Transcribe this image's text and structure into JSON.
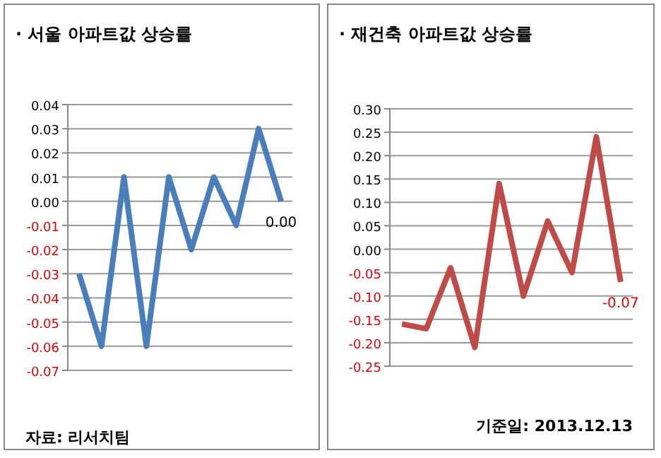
{
  "chart_data": [
    {
      "type": "line",
      "title": "· 서울 아파트값 상승률",
      "categories": [
        null,
        null,
        null,
        null,
        null,
        null,
        null,
        null,
        null,
        null
      ],
      "series": [
        {
          "color": "#4a7ebb",
          "values": [
            -0.03,
            -0.06,
            0.01,
            -0.06,
            0.01,
            -0.02,
            0.01,
            -0.01,
            0.03,
            0.0
          ],
          "value_labels": [
            null,
            null,
            null,
            null,
            null,
            null,
            null,
            null,
            null,
            "0.00"
          ]
        }
      ],
      "ylim": [
        -0.07,
        0.04
      ],
      "yticks": [
        {
          "value": -0.07,
          "label": "-0.07"
        },
        {
          "value": -0.06,
          "label": "-0.06"
        },
        {
          "value": -0.05,
          "label": "-0.05"
        },
        {
          "value": -0.04,
          "label": "-0.04"
        },
        {
          "value": -0.03,
          "label": "-0.03"
        },
        {
          "value": -0.02,
          "label": "-0.02"
        },
        {
          "value": -0.01,
          "label": "-0.01"
        },
        {
          "value": 0,
          "label": "0.00"
        },
        {
          "value": 0.01,
          "label": "0.01"
        },
        {
          "value": 0.02,
          "label": "0.02"
        },
        {
          "value": 0.03,
          "label": "0.03"
        },
        {
          "value": 0.04,
          "label": "0.04"
        }
      ],
      "grid": "y",
      "marker": "none",
      "line_style": "solid",
      "annotations": [
        "자료: 리서치팀"
      ]
    },
    {
      "type": "line",
      "title": "· 재건축 아파트값 상승률",
      "categories": [
        null,
        null,
        null,
        null,
        null,
        null,
        null,
        null,
        null,
        null
      ],
      "series": [
        {
          "color": "#be4b48",
          "values": [
            -0.16,
            -0.17,
            -0.04,
            -0.21,
            0.14,
            -0.1,
            0.06,
            -0.05,
            0.24,
            -0.07
          ],
          "value_labels": [
            null,
            null,
            null,
            null,
            null,
            null,
            null,
            null,
            null,
            "-0.07"
          ]
        }
      ],
      "ylim": [
        -0.25,
        0.3
      ],
      "yticks": [
        {
          "value": -0.25,
          "label": "-0.25"
        },
        {
          "value": -0.2,
          "label": "-0.20"
        },
        {
          "value": -0.15,
          "label": "-0.15"
        },
        {
          "value": -0.1,
          "label": "-0.10"
        },
        {
          "value": -0.05,
          "label": "-0.05"
        },
        {
          "value": 0,
          "label": "0.00"
        },
        {
          "value": 0.05,
          "label": "0.05"
        },
        {
          "value": 0.1,
          "label": "0.10"
        },
        {
          "value": 0.15,
          "label": "0.15"
        },
        {
          "value": 0.2,
          "label": "0.20"
        },
        {
          "value": 0.25,
          "label": "0.25"
        },
        {
          "value": 0.3,
          "label": "0.30"
        }
      ],
      "grid": "y",
      "marker": "none",
      "line_style": "solid",
      "annotations": [
        "기준일: 2013.12.13"
      ]
    }
  ]
}
